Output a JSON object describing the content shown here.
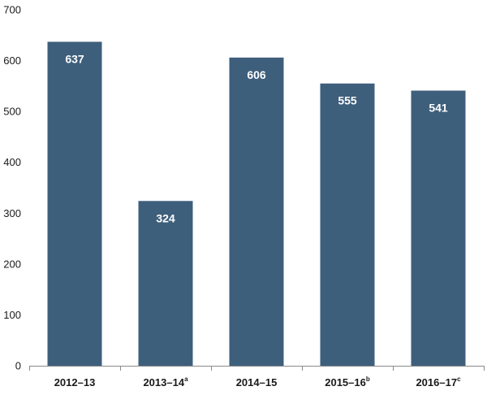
{
  "chart_data": {
    "type": "bar",
    "categories": [
      "2012–13",
      "2013–14",
      "2014–15",
      "2015–16",
      "2016–17"
    ],
    "category_superscripts": [
      "",
      "a",
      "",
      "b",
      "c"
    ],
    "values": [
      637,
      324,
      606,
      555,
      541
    ],
    "data_labels": [
      "637",
      "324",
      "606",
      "555",
      "541"
    ],
    "title": "",
    "xlabel": "",
    "ylabel": "",
    "ylim": [
      0,
      700
    ],
    "yticks": [
      0,
      100,
      200,
      300,
      400,
      500,
      600,
      700
    ],
    "ytick_labels": [
      "0",
      "100",
      "200",
      "300",
      "400",
      "500",
      "600",
      "700"
    ],
    "grid": false,
    "legend": "none",
    "bar_color": "#3e5f7c",
    "axis_color": "#8a8a8a"
  }
}
